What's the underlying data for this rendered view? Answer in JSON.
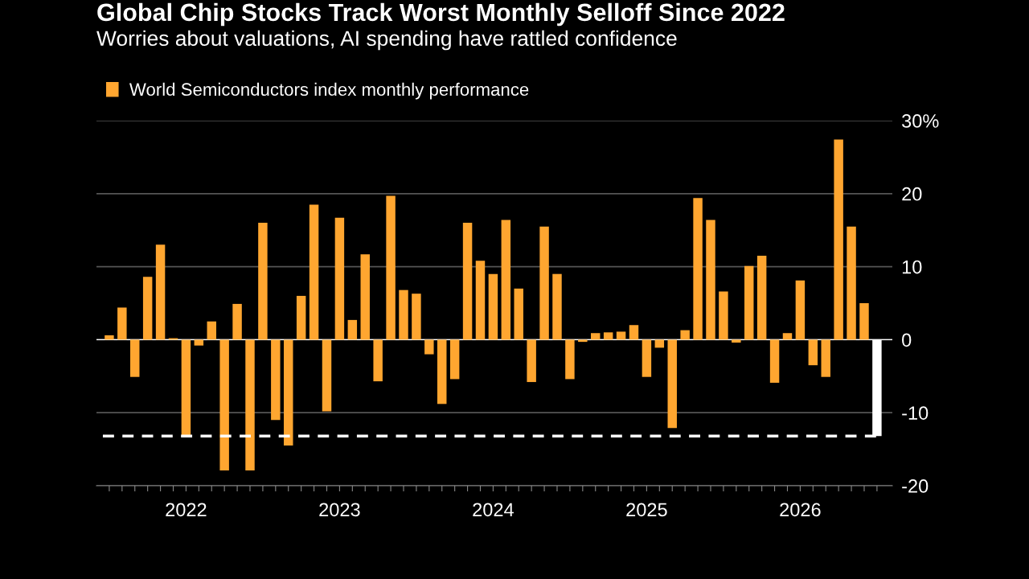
{
  "chart_data": {
    "type": "bar",
    "title": "Global Chip Stocks Track Worst Monthly Selloff Since 2022",
    "subtitle": "Worries about valuations, AI spending have rattled confidence",
    "categories": [
      null,
      null,
      null,
      null,
      null,
      null,
      "2022",
      null,
      null,
      null,
      null,
      null,
      null,
      null,
      null,
      null,
      null,
      null,
      "2023",
      null,
      null,
      null,
      null,
      null,
      null,
      null,
      null,
      null,
      null,
      null,
      "2024",
      null,
      null,
      null,
      null,
      null,
      null,
      null,
      null,
      null,
      null,
      null,
      "2025",
      null,
      null,
      null,
      null,
      null,
      null,
      null,
      null,
      null,
      null,
      null,
      "2026",
      null,
      null,
      null,
      null,
      null,
      null
    ],
    "series": [
      {
        "name": "World Semiconductors index monthly performance",
        "color": "#ffa630",
        "values": [
          0.6,
          4.4,
          -5.1,
          8.6,
          13.0,
          0.2,
          -13.2,
          -0.8,
          2.5,
          -17.9,
          4.9,
          -17.9,
          16.0,
          -11.0,
          -14.5,
          6.0,
          18.5,
          -9.8,
          16.7,
          2.7,
          11.7,
          -5.7,
          19.7,
          6.8,
          6.3,
          -2.0,
          -8.8,
          -5.4,
          16.0,
          10.8,
          9.0,
          16.4,
          7.0,
          -5.8,
          15.5,
          9.0,
          -5.4,
          -0.3,
          0.9,
          1.0,
          1.1,
          2.0,
          -5.1,
          -1.1,
          -12.1,
          1.3,
          19.4,
          16.4,
          6.6,
          -0.4,
          10.1,
          11.5,
          -5.9,
          0.9,
          8.1,
          -3.5,
          -5.1,
          27.4,
          15.5,
          5.0,
          -13.2
        ],
        "colors": [
          "#ffa630",
          "#ffa630",
          "#ffa630",
          "#ffa630",
          "#ffa630",
          "#ffa630",
          "#ffa630",
          "#ffa630",
          "#ffa630",
          "#ffa630",
          "#ffa630",
          "#ffa630",
          "#ffa630",
          "#ffa630",
          "#ffa630",
          "#ffa630",
          "#ffa630",
          "#ffa630",
          "#ffa630",
          "#ffa630",
          "#ffa630",
          "#ffa630",
          "#ffa630",
          "#ffa630",
          "#ffa630",
          "#ffa630",
          "#ffa630",
          "#ffa630",
          "#ffa630",
          "#ffa630",
          "#ffa630",
          "#ffa630",
          "#ffa630",
          "#ffa630",
          "#ffa630",
          "#ffa630",
          "#ffa630",
          "#ffa630",
          "#ffa630",
          "#ffa630",
          "#ffa630",
          "#ffa630",
          "#ffa630",
          "#ffa630",
          "#ffa630",
          "#ffa630",
          "#ffa630",
          "#ffa630",
          "#ffa630",
          "#ffa630",
          "#ffa630",
          "#ffa630",
          "#ffa630",
          "#ffa630",
          "#ffa630",
          "#ffa630",
          "#ffa630",
          "#ffa630",
          "#ffa630",
          "#ffa630",
          "#ffffff"
        ]
      }
    ],
    "ylim": [
      -20,
      30
    ],
    "yticks": [
      -20,
      -10,
      0,
      10,
      20,
      {
        "value": 30,
        "label": "30%"
      }
    ],
    "grid": "y",
    "legend": "top left",
    "ref_lines": [
      {
        "axis": "y",
        "value": -13.2,
        "color": "#ffffff",
        "line_style": "dashed"
      }
    ]
  }
}
